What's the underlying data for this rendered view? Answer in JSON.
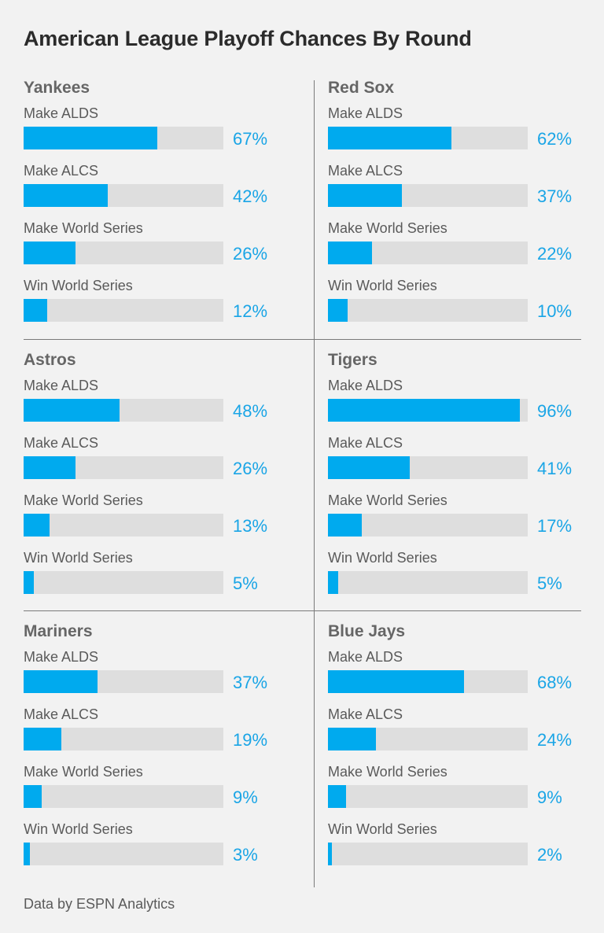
{
  "title": "American League Playoff Chances By Round",
  "footer": "Data by ESPN Analytics",
  "colors": {
    "bar": "#00aaee",
    "track": "#dedede",
    "percent_text": "#1aa5e6"
  },
  "rounds": [
    "Make ALDS",
    "Make ALCS",
    "Make World Series",
    "Win World Series"
  ],
  "chart_data": {
    "type": "bar",
    "title": "American League Playoff Chances By Round",
    "unit": "%",
    "categories": [
      "Make ALDS",
      "Make ALCS",
      "Make World Series",
      "Win World Series"
    ],
    "ylim": [
      0,
      100
    ],
    "series": [
      {
        "name": "Yankees",
        "values": [
          67,
          42,
          26,
          12
        ],
        "labels": [
          "67%",
          "42%",
          "26%",
          "12%"
        ]
      },
      {
        "name": "Red Sox",
        "values": [
          62,
          37,
          22,
          10
        ],
        "labels": [
          "62%",
          "37%",
          "22%",
          "10%"
        ]
      },
      {
        "name": "Astros",
        "values": [
          48,
          26,
          13,
          5
        ],
        "labels": [
          "48%",
          "26%",
          "13%",
          "5%"
        ]
      },
      {
        "name": "Tigers",
        "values": [
          96,
          41,
          17,
          5
        ],
        "labels": [
          "96%",
          "41%",
          "17%",
          "5%"
        ]
      },
      {
        "name": "Mariners",
        "values": [
          37,
          19,
          9,
          3
        ],
        "labels": [
          "37%",
          "19%",
          "9%",
          "3%"
        ]
      },
      {
        "name": "Blue Jays",
        "values": [
          68,
          24,
          9,
          2
        ],
        "labels": [
          "68%",
          "24%",
          "9%",
          "2%"
        ]
      }
    ]
  }
}
